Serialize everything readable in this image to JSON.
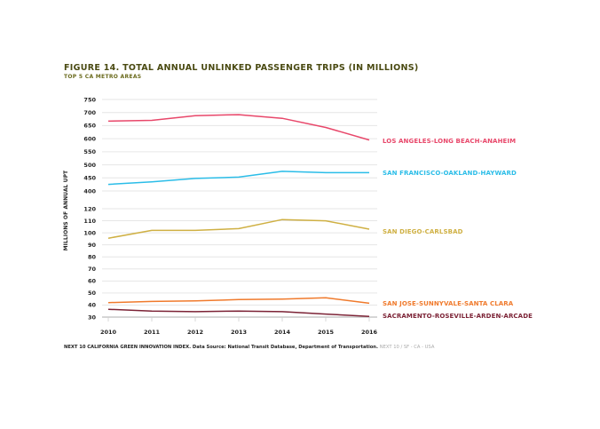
{
  "chart_data": {
    "type": "line",
    "title": "FIGURE 14. TOTAL ANNUAL UNLINKED PASSENGER TRIPS (IN MILLIONS)",
    "subtitle": "TOP 5 CA METRO AREAS",
    "xlabel": "",
    "ylabel": "MILLIONS OF ANNUAL UPT",
    "x": [
      "2010",
      "2011",
      "2012",
      "2013",
      "2014",
      "2015",
      "2016"
    ],
    "y_axis_note": "broken axis: lower segment 30-120 (step 10), upper segment 400-750 (step 50)",
    "yticks_lower": [
      30,
      40,
      50,
      60,
      70,
      80,
      90,
      100,
      110,
      120
    ],
    "yticks_upper": [
      400,
      450,
      500,
      550,
      600,
      650,
      700,
      750
    ],
    "ylim_lower": [
      30,
      120
    ],
    "ylim_upper": [
      400,
      750
    ],
    "grid": true,
    "legend": "inline labels at right end of lines",
    "series": [
      {
        "name": "LOS ANGELES-LONG BEACH-ANAHEIM",
        "color": "#e8476a",
        "segment": "upper",
        "values": [
          667,
          670,
          688,
          692,
          678,
          643,
          595
        ]
      },
      {
        "name": "SAN FRANCISCO-OAKLAND-HAYWARD",
        "color": "#2bbde8",
        "segment": "upper",
        "values": [
          425,
          435,
          448,
          453,
          475,
          470,
          470
        ]
      },
      {
        "name": "SAN DIEGO-CARLSBAD",
        "color": "#cfb043",
        "segment": "lower",
        "values": [
          95.5,
          102,
          102,
          103.5,
          111,
          110,
          103
        ]
      },
      {
        "name": "SAN JOSE-SUNNYVALE-SANTA CLARA",
        "color": "#f07a2c",
        "segment": "lower",
        "values": [
          42,
          43,
          43.5,
          44.5,
          45,
          46,
          41.5
        ]
      },
      {
        "name": "SACRAMENTO-ROSEVILLE-ARDEN-ARCADE",
        "color": "#7c2336",
        "segment": "lower",
        "values": [
          36.5,
          35,
          34.5,
          35,
          34.5,
          32.5,
          30.5
        ]
      }
    ]
  },
  "footer": {
    "source": "NEXT 10 CALIFORNIA GREEN INNOVATION INDEX. Data Source: National Transit Database, Department of Transportation.",
    "brand": "NEXT 10 / SF - CA - USA"
  }
}
